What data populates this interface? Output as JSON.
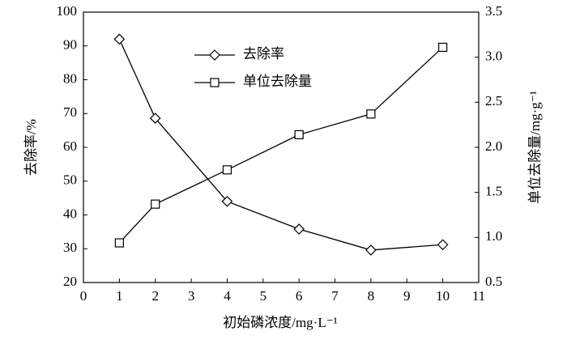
{
  "chart_data": {
    "type": "line",
    "x_label": "初始磷浓度/mg·L⁻¹",
    "y_label": "去除率/%",
    "y2_label": "单位去除量/mg·g⁻¹",
    "x": [
      1,
      2,
      4,
      6,
      8,
      10
    ],
    "series": [
      {
        "name": "去除率",
        "color": "#000000",
        "marker": "diamond",
        "values": [
          92,
          68.6,
          44,
          35.8,
          29.6,
          31.2
        ]
      },
      {
        "name": "单位去除量",
        "color": "#000000",
        "marker": "square",
        "axis": "y2",
        "values": [
          0.94,
          1.37,
          1.75,
          2.14,
          2.37,
          3.11
        ]
      }
    ],
    "xlim": [
      0,
      11
    ],
    "xticks": [
      0,
      1,
      2,
      3,
      4,
      5,
      6,
      7,
      8,
      9,
      10,
      11
    ],
    "ylim": [
      20,
      100
    ],
    "yticks": [
      20,
      30,
      40,
      50,
      60,
      70,
      80,
      90,
      100
    ],
    "y2lim": [
      0.5,
      3.5
    ],
    "y2ticks": [
      {
        "value": 0.5,
        "label": "0.5"
      },
      {
        "value": 1,
        "label": "1.0"
      },
      {
        "value": 1.5,
        "label": "1.5"
      },
      {
        "value": 2,
        "label": "2.0"
      },
      {
        "value": 2.5,
        "label": "2.5"
      },
      {
        "value": 3,
        "label": "3.0"
      },
      {
        "value": 3.5,
        "label": "3.5"
      }
    ],
    "grid": false,
    "legend": "upper center"
  }
}
